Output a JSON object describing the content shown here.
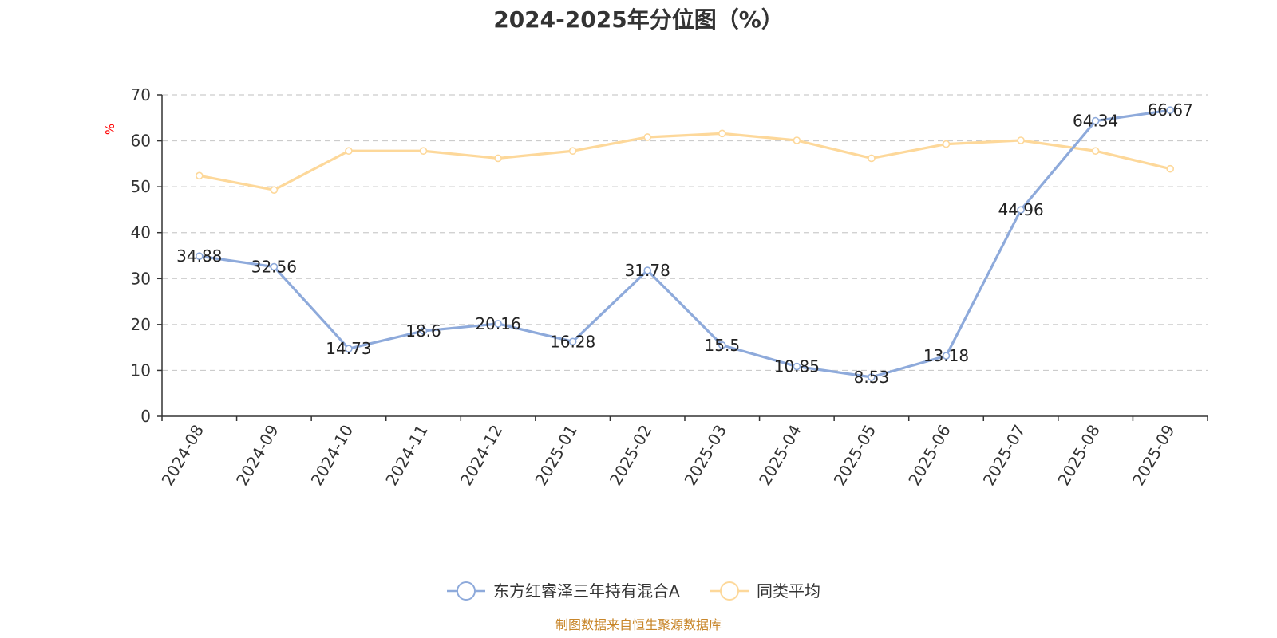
{
  "chart_data": {
    "type": "line",
    "title": "2024-2025年分位图（%）",
    "ylabel": "%",
    "xlabel": "",
    "ylim": [
      0,
      70
    ],
    "yticks": [
      0,
      10,
      20,
      30,
      40,
      50,
      60,
      70
    ],
    "grid": true,
    "legend_position": "bottom-center",
    "categories": [
      "2024-08",
      "2024-09",
      "2024-10",
      "2024-11",
      "2024-12",
      "2025-01",
      "2025-02",
      "2025-03",
      "2025-04",
      "2025-05",
      "2025-06",
      "2025-07",
      "2025-08",
      "2025-09"
    ],
    "series": [
      {
        "name": "东方红睿泽三年持有混合A",
        "color": "#8eaadb",
        "show_labels": true,
        "values": [
          34.88,
          32.56,
          14.73,
          18.6,
          20.16,
          16.28,
          31.78,
          15.5,
          10.85,
          8.53,
          13.18,
          44.96,
          64.34,
          66.67
        ]
      },
      {
        "name": "同类平均",
        "color": "#fdd89a",
        "show_labels": false,
        "values": [
          52.4,
          49.3,
          57.8,
          57.8,
          56.2,
          57.8,
          60.8,
          61.6,
          60.1,
          56.2,
          59.3,
          60.1,
          57.8,
          53.9
        ]
      }
    ],
    "source": "制图数据来自恒生聚源数据库"
  }
}
